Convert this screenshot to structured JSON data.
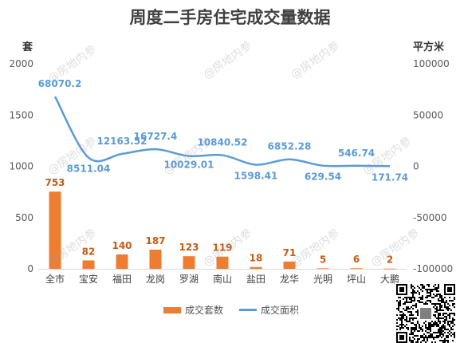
{
  "chart_data": {
    "type": "bar",
    "title": "周度二手房住宅成交量数据",
    "categories": [
      "全市",
      "宝安",
      "福田",
      "龙岗",
      "罗湖",
      "南山",
      "盐田",
      "龙华",
      "光明",
      "坪山",
      "大鹏"
    ],
    "series": [
      {
        "name": "成交套数",
        "type": "bar",
        "axis": "left",
        "values": [
          753,
          82,
          140,
          187,
          123,
          119,
          18,
          71,
          5,
          6,
          2
        ]
      },
      {
        "name": "成交面积",
        "type": "line",
        "axis": "right",
        "values": [
          68070.2,
          8511.04,
          12163.52,
          16727.4,
          10029.01,
          10840.52,
          1598.41,
          6852.28,
          629.54,
          546.74,
          171.74
        ]
      }
    ],
    "y_left": {
      "label": "套",
      "ylim": [
        0,
        2000
      ],
      "ticks": [
        0,
        500,
        1000,
        1500,
        2000
      ]
    },
    "y_right": {
      "label": "平方米",
      "ylim": [
        -100000,
        100000
      ],
      "ticks": [
        -100000,
        -50000,
        0,
        50000,
        100000
      ]
    },
    "bar_labels": [
      "753",
      "82",
      "140",
      "187",
      "123",
      "119",
      "18",
      "71",
      "5",
      "6",
      "2"
    ],
    "line_labels": [
      "68070.2",
      "8511.04",
      "12163.52",
      "16727.4",
      "10029.01",
      "10840.52",
      "1598.41",
      "6852.28",
      "629.54",
      "546.74",
      "171.74"
    ],
    "legend_placement": "bottom",
    "grid": false,
    "bar_color": "#ED7D31",
    "line_color": "#5B9BD5",
    "label_color_bar": "#C55A11",
    "label_color_line": "#5B9BD5"
  },
  "watermark_text": "@房地内参",
  "qr_code": "qr-code-image"
}
